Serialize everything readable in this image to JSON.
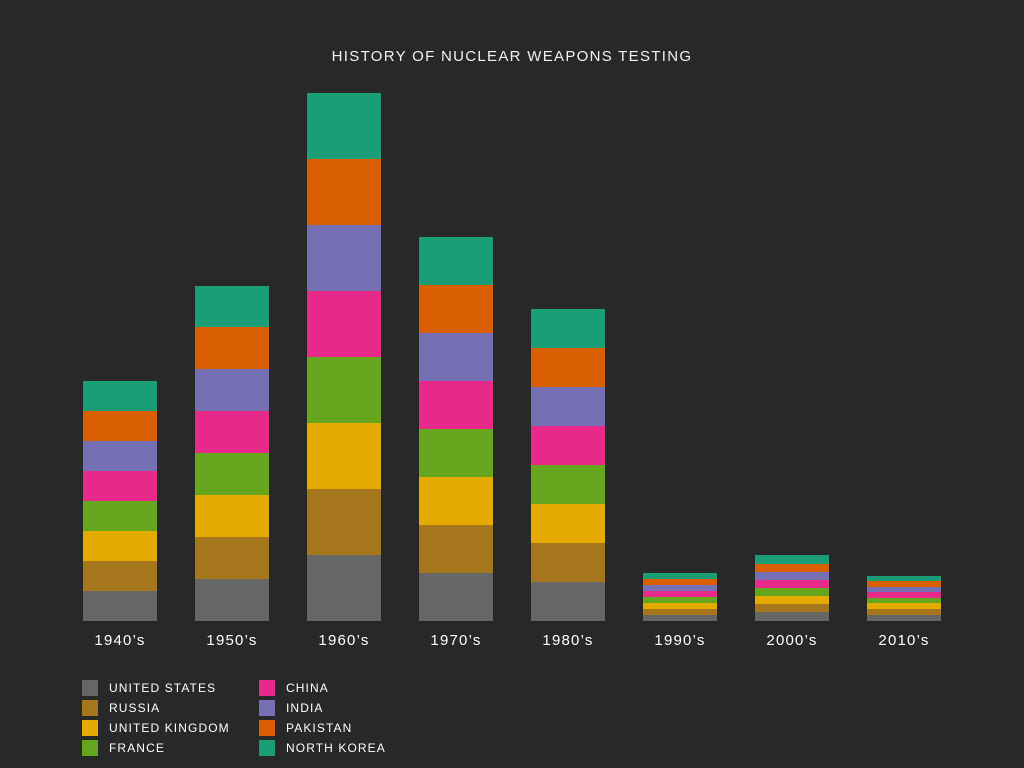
{
  "chart_data": {
    "type": "bar",
    "stacked": true,
    "title": "HISTORY OF NUCLEAR WEAPONS TESTING",
    "xlabel": "",
    "ylabel": "",
    "grid": false,
    "legend_position": "bottom-left",
    "categories": [
      "1940’s",
      "1950’s",
      "1960’s",
      "1970’s",
      "1980’s",
      "1990’s",
      "2000’s",
      "2010’s"
    ],
    "series": [
      {
        "name": "UNITED STATES",
        "color": "#666666",
        "values": [
          30,
          42,
          66,
          48,
          39,
          6,
          9,
          6
        ]
      },
      {
        "name": "RUSSIA",
        "color": "#a6761d",
        "values": [
          30,
          42,
          66,
          48,
          39,
          6,
          8,
          6
        ]
      },
      {
        "name": "UNITED KINGDOM",
        "color": "#e6ab02",
        "values": [
          30,
          42,
          66,
          48,
          39,
          6,
          8,
          6
        ]
      },
      {
        "name": "FRANCE",
        "color": "#66a61e",
        "values": [
          30,
          42,
          66,
          48,
          39,
          6,
          8,
          5
        ]
      },
      {
        "name": "CHINA",
        "color": "#e7298a",
        "values": [
          30,
          42,
          66,
          48,
          39,
          6,
          8,
          6
        ]
      },
      {
        "name": "INDIA",
        "color": "#7570b3",
        "values": [
          30,
          42,
          66,
          48,
          39,
          6,
          8,
          5
        ]
      },
      {
        "name": "PAKISTAN",
        "color": "#d95f02",
        "values": [
          30,
          42,
          66,
          48,
          39,
          6,
          8,
          6
        ]
      },
      {
        "name": "NORTH KOREA",
        "color": "#1b9e77",
        "values": [
          30,
          41,
          66,
          48,
          39,
          6,
          9,
          5
        ]
      }
    ],
    "ylim": [
      0,
      528
    ]
  }
}
